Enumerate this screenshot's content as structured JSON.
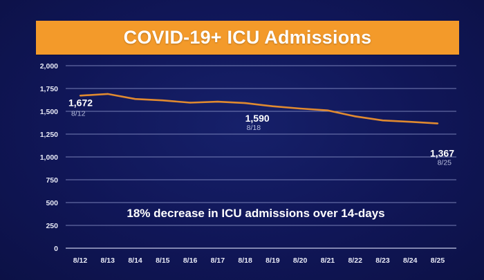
{
  "slide": {
    "title": "COVID-19+ ICU Admissions"
  },
  "chart_data": {
    "type": "line",
    "title": "COVID-19+ ICU Admissions",
    "xlabel": "",
    "ylabel": "",
    "categories": [
      "8/12",
      "8/13",
      "8/14",
      "8/15",
      "8/16",
      "8/17",
      "8/18",
      "8/19",
      "8/20",
      "8/21",
      "8/22",
      "8/23",
      "8/24",
      "8/25"
    ],
    "series": [
      {
        "values": [
          1672,
          1690,
          1635,
          1620,
          1595,
          1605,
          1590,
          1555,
          1530,
          1510,
          1445,
          1400,
          1385,
          1367
        ]
      }
    ],
    "ylim": [
      0,
      2000
    ],
    "yticks": [
      0,
      250,
      500,
      750,
      1000,
      1250,
      1500,
      1750,
      2000
    ],
    "ytick_labels": [
      "0",
      "250",
      "500",
      "750",
      "1,000",
      "1,250",
      "1,500",
      "1,750",
      "2,000"
    ],
    "grid": true,
    "line_color": "#e08a30",
    "data_labels": [
      {
        "value_text": "1,672",
        "date_text": "8/12",
        "index": 0
      },
      {
        "value_text": "1,590",
        "date_text": "8/18",
        "index": 6
      },
      {
        "value_text": "1,367",
        "date_text": "8/25",
        "index": 13
      }
    ],
    "annotation": "18% decrease in ICU admissions over 14-days"
  }
}
